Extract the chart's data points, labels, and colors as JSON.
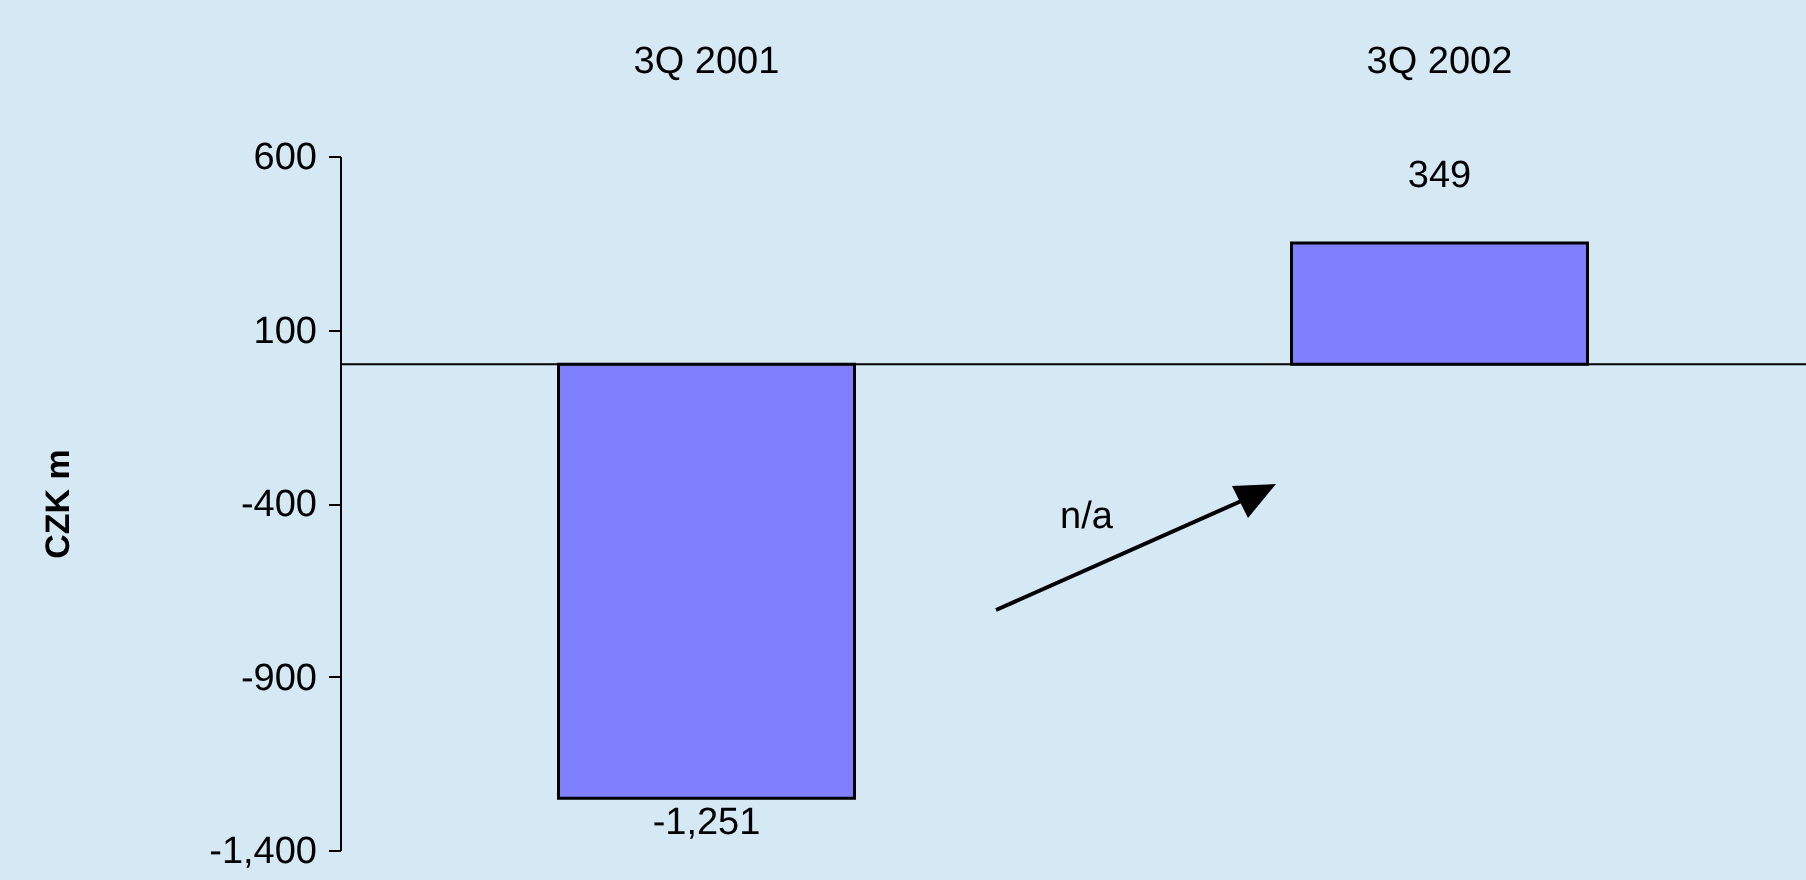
{
  "chart_data": {
    "type": "bar",
    "categories": [
      "3Q 2001",
      "3Q 2002"
    ],
    "values": [
      -1251,
      349
    ],
    "color": "#8080ff",
    "value_labels": [
      "-1,251",
      "349"
    ],
    "ylabel": "CZK m",
    "ylim": [
      -1400,
      600
    ],
    "yticks": [
      {
        "value": -1400,
        "label": "-1,400"
      },
      {
        "value": -900,
        "label": "-900"
      },
      {
        "value": -400,
        "label": "-400"
      },
      {
        "value": 100,
        "label": "100"
      },
      {
        "value": 600,
        "label": "600"
      }
    ],
    "annotations": [
      "n/a"
    ]
  }
}
